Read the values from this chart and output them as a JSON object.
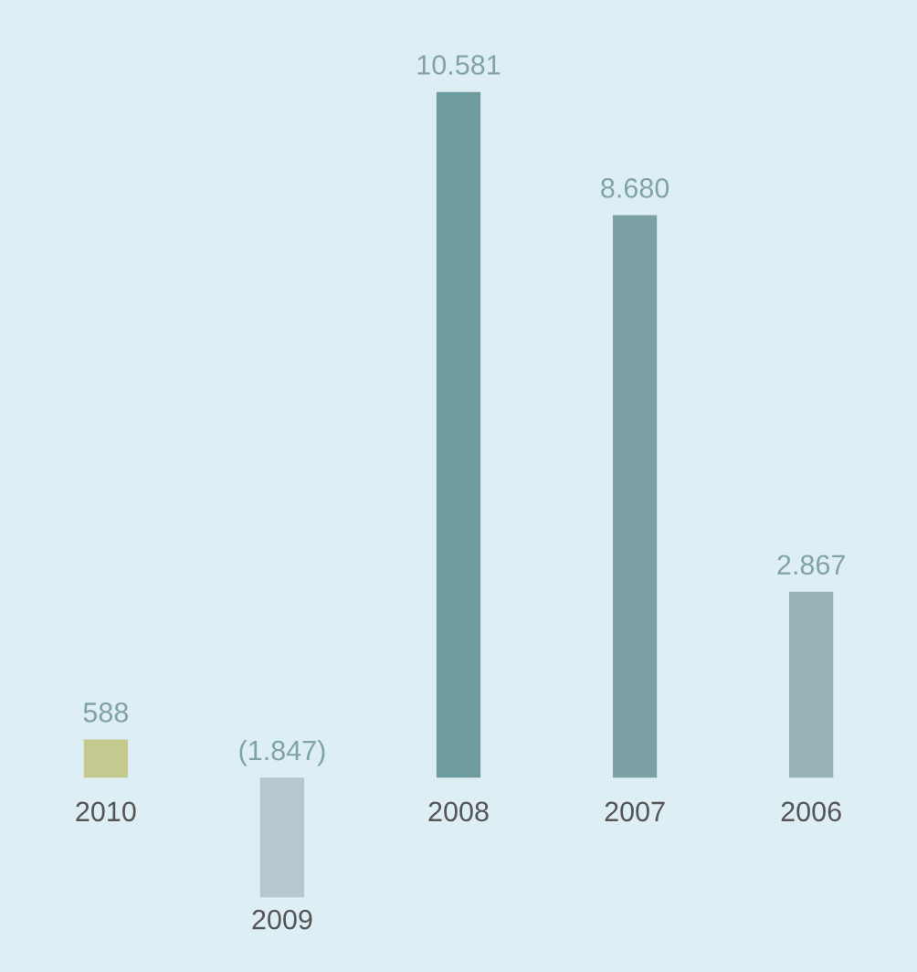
{
  "chart_data": {
    "type": "bar",
    "categories": [
      "2010",
      "2009",
      "2008",
      "2007",
      "2006"
    ],
    "values": [
      588,
      -1847,
      10581,
      8680,
      2867
    ],
    "value_labels": [
      "588",
      "(1.847)",
      "10.581",
      "8.680",
      "2.867"
    ],
    "colors": [
      "#c4c98f",
      "#b7c7cd",
      "#6e9b9d",
      "#7ca1a4",
      "#98b2b7"
    ],
    "ylim": [
      -3000,
      12000
    ]
  }
}
